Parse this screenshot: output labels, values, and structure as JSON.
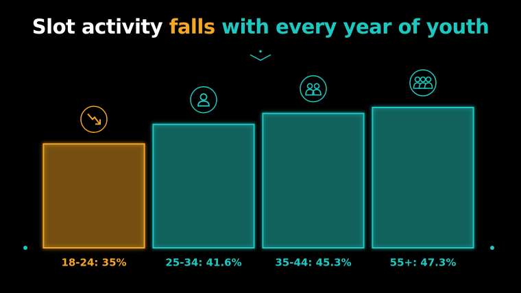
{
  "chart_data": {
    "type": "bar",
    "title_parts": [
      {
        "text": "Slot activity ",
        "color": "#ffffff"
      },
      {
        "text": "falls",
        "color": "#f5a623"
      },
      {
        "text": " with every year of youth",
        "color": "#1cc9c1"
      }
    ],
    "categories": [
      "18-24: 35%",
      "25-34: 41.6%",
      "35-44: 45.3%",
      "55+: 47.3%"
    ],
    "values": [
      35,
      41.6,
      45.3,
      47.3
    ],
    "colors": [
      "#f5a623",
      "#1cc9c1",
      "#1cc9c1",
      "#1cc9c1"
    ]
  }
}
